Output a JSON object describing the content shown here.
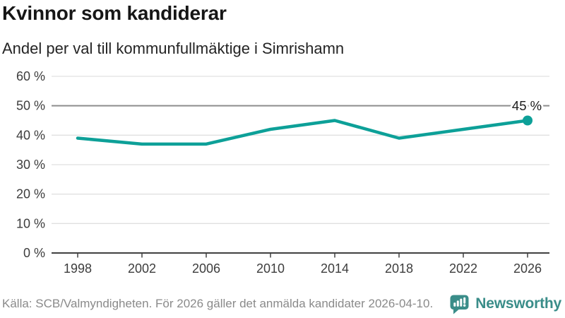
{
  "chart_data": {
    "type": "line",
    "title": "Kvinnor som kandiderar",
    "subtitle": "Andel per val till kommunfullmäktige i Simrishamn",
    "x": [
      1998,
      2002,
      2006,
      2010,
      2014,
      2018,
      2022,
      2026
    ],
    "xtick_labels": [
      "1998",
      "2002",
      "2006",
      "2010",
      "2014",
      "2018",
      "2022",
      "2026"
    ],
    "values": [
      39,
      37,
      37,
      42,
      45,
      39,
      42,
      45
    ],
    "unit": "%",
    "ylim": [
      0,
      60
    ],
    "ytick_labels": [
      "0 %",
      "10 %",
      "20 %",
      "30 %",
      "40 %",
      "50 %",
      "60 %"
    ],
    "reference_line": 50,
    "last_point_label": "45 %",
    "line_color": "#0da098",
    "grid": true,
    "legend": "none",
    "source": "Källa: SCB/Valmyndigheten. För 2026 gäller det anmälda kandidater 2026-04-10."
  },
  "footer": {
    "brand": "Newsworthy",
    "brand_color": "#3a8d89"
  }
}
